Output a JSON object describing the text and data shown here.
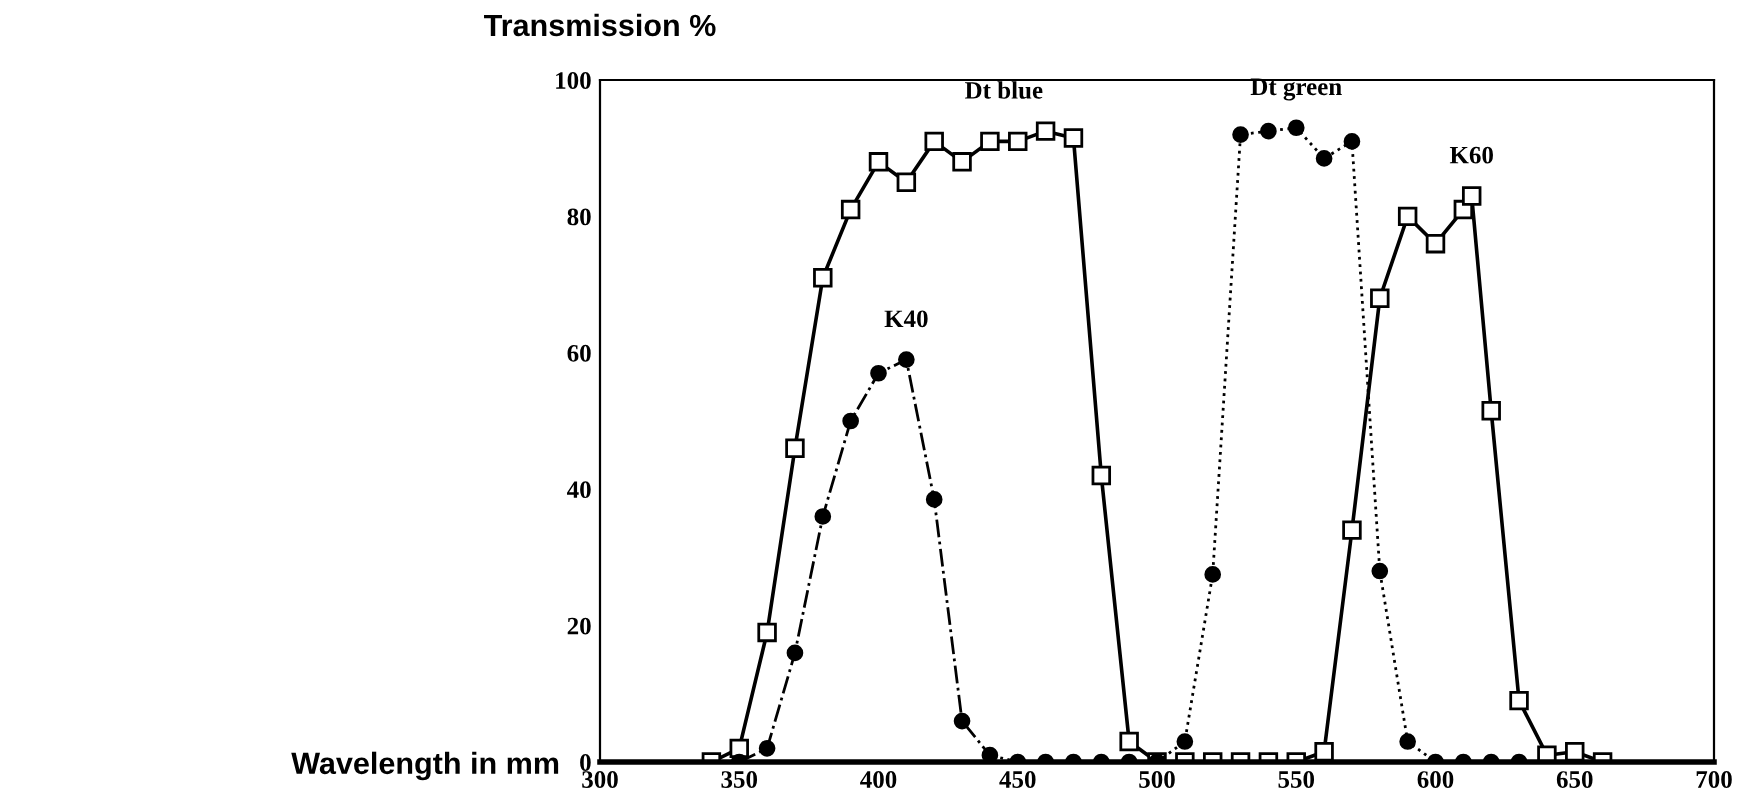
{
  "chart_data": {
    "type": "line",
    "ylabel": "Transmission %",
    "xlabel": "Wavelength in mm",
    "xlim": [
      300,
      700
    ],
    "ylim": [
      0,
      100
    ],
    "xticks": [
      300,
      350,
      400,
      450,
      500,
      550,
      600,
      650,
      700
    ],
    "yticks": [
      0,
      20,
      40,
      60,
      80,
      100
    ],
    "grid": false,
    "legend": false,
    "series": [
      {
        "name": "Dt blue",
        "color": "#000000",
        "marker": "square",
        "line_style": "solid",
        "x": [
          340,
          350,
          360,
          370,
          380,
          390,
          400,
          410,
          420,
          430,
          440,
          450,
          460,
          470,
          480,
          490,
          500
        ],
        "values": [
          0,
          2,
          19,
          46,
          71,
          81,
          88,
          85,
          91,
          88,
          91,
          91,
          92.5,
          91.5,
          42,
          3,
          0
        ]
      },
      {
        "name": "K40",
        "color": "#000000",
        "marker": "circle",
        "line_style": "dashed",
        "x": [
          350,
          360,
          370,
          380,
          390,
          400,
          410,
          420,
          430,
          440,
          450,
          460,
          470,
          480,
          490,
          500
        ],
        "values": [
          0,
          2,
          16,
          36,
          50,
          57,
          59,
          38.5,
          6,
          1,
          0,
          0,
          0,
          0,
          0,
          0
        ]
      },
      {
        "name": "Dt green",
        "color": "#000000",
        "marker": "circle",
        "line_style": "dotted",
        "x": [
          500,
          510,
          520,
          530,
          540,
          550,
          560,
          570,
          580,
          590,
          600,
          610,
          620,
          630
        ],
        "values": [
          0,
          3,
          27.5,
          92,
          92.5,
          93,
          88.5,
          91,
          28,
          3,
          0,
          0,
          0,
          0
        ]
      },
      {
        "name": "K60",
        "color": "#000000",
        "marker": "square",
        "line_style": "solid",
        "x": [
          510,
          520,
          530,
          540,
          550,
          560,
          570,
          580,
          590,
          600,
          610,
          613,
          620,
          630,
          640,
          650,
          660
        ],
        "values": [
          0,
          0,
          0,
          0,
          0,
          1.5,
          34,
          68,
          80,
          76,
          81,
          83,
          51.5,
          9,
          1,
          1.5,
          0
        ]
      }
    ]
  }
}
